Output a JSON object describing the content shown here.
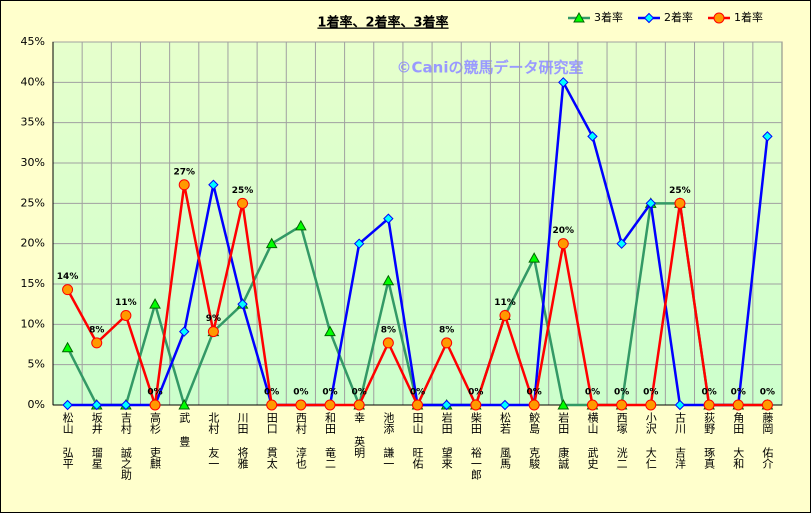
{
  "chart_data": {
    "type": "line",
    "title": "1着率、2着率、3着率",
    "annotation": "©Caniの競馬データ研究室",
    "categories": [
      "松山 弘平",
      "坂井 瑠星",
      "吉村 誠之助",
      "高杉 吏麒",
      "武 豊",
      "北村 友一",
      "川田 将雅",
      "田口 貫太",
      "西村 淳也",
      "和田 竜二",
      "幸 英明",
      "池添 謙一",
      "田山 旺佑",
      "岩田 望来",
      "柴田 裕一郎",
      "松若 風馬",
      "鮫島 克駿",
      "岩田 康誠",
      "横山 武史",
      "西塚 洸二",
      "小沢 大仁",
      "古川 吉洋",
      "荻野 琢真",
      "角田 大和",
      "藤岡 佑介"
    ],
    "series": [
      {
        "name": "3着率",
        "color": "#339966",
        "marker": "triangle",
        "marker_color": "#00ff00",
        "values": [
          7.1,
          0,
          0,
          12.5,
          0,
          9.1,
          12.5,
          20,
          22.2,
          9.1,
          0,
          15.4,
          0,
          0,
          0,
          11.1,
          18.2,
          0,
          0,
          0,
          25,
          25,
          0,
          0,
          0
        ]
      },
      {
        "name": "2着率",
        "color": "#0000ff",
        "marker": "diamond",
        "marker_color": "#00ffff",
        "values": [
          0,
          0,
          0,
          0,
          9.1,
          27.3,
          12.5,
          0,
          0,
          0,
          20,
          23.1,
          0,
          0,
          0,
          0,
          0,
          40,
          33.3,
          20,
          25,
          0,
          0,
          0,
          33.3
        ]
      },
      {
        "name": "1着率",
        "color": "#ff0000",
        "marker": "circle",
        "marker_color": "#ff9900",
        "values": [
          14.3,
          7.7,
          11.1,
          0,
          27.3,
          9.1,
          25,
          0,
          0,
          0,
          0,
          7.7,
          0,
          7.7,
          0,
          11.1,
          0,
          20,
          0,
          0,
          0,
          25,
          0,
          0,
          0
        ],
        "value_labels": [
          "14%",
          "8%",
          "11%",
          "0%",
          "27%",
          "9%",
          "25%",
          "0%",
          "0%",
          "0%",
          "0%",
          "8%",
          "0%",
          "8%",
          "0%",
          "11%",
          "0%",
          "20%",
          "0%",
          "0%",
          "0%",
          "25%",
          "0%",
          "0%",
          "0%"
        ]
      }
    ],
    "ylim": [
      0,
      45
    ],
    "yticks": [
      {
        "value": 0,
        "label": "0%"
      },
      {
        "value": 5,
        "label": "5%"
      },
      {
        "value": 10,
        "label": "10%"
      },
      {
        "value": 15,
        "label": "15%"
      },
      {
        "value": 20,
        "label": "20%"
      },
      {
        "value": 25,
        "label": "25%"
      },
      {
        "value": 30,
        "label": "30%"
      },
      {
        "value": 35,
        "label": "35%"
      },
      {
        "value": 40,
        "label": "40%"
      },
      {
        "value": 45,
        "label": "45%"
      }
    ],
    "grid": true,
    "legend": "top-right"
  }
}
